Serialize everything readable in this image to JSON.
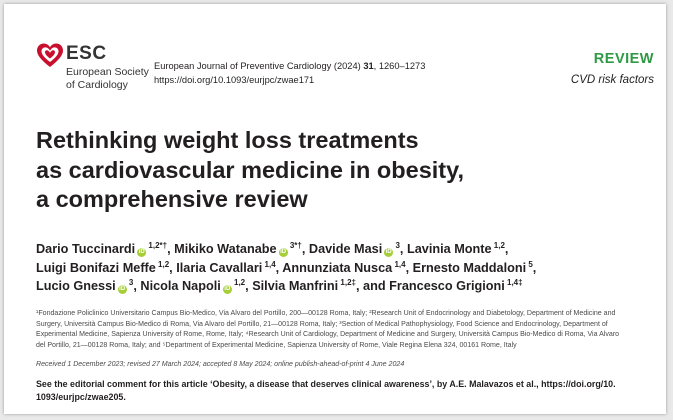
{
  "logo": {
    "brand": "ESC",
    "society_line1": "European Society",
    "society_line2": "of Cardiology",
    "heart_color": "#c8102e"
  },
  "journal": {
    "name": "European Journal of Preventive Cardiology (2024)",
    "volume": "31",
    "pages": ", 1260–1273",
    "doi": "https://doi.org/10.1093/eurjpc/zwae171"
  },
  "article_type": {
    "label": "REVIEW",
    "label_color": "#2f9a46",
    "section": "CVD risk factors"
  },
  "title": {
    "line1": "Rethinking weight loss treatments",
    "line2": "as cardiovascular medicine in obesity,",
    "line3": "a comprehensive review"
  },
  "authors": {
    "line1": [
      {
        "name": "Dario Tuccinardi",
        "sup": "1,2",
        "mark": "*†",
        "orcid": true,
        "sep": ", "
      },
      {
        "name": "Mikiko Watanabe",
        "sup": "3",
        "mark": "*†",
        "orcid": true,
        "sep": ", "
      },
      {
        "name": "Davide Masi",
        "sup": "3",
        "mark": "",
        "orcid": true,
        "sep": ", "
      },
      {
        "name": "Lavinia Monte",
        "sup": "1,2",
        "mark": "",
        "orcid": false,
        "sep": ","
      }
    ],
    "line2": [
      {
        "name": "Luigi Bonifazi Meffe",
        "sup": "1,2",
        "mark": "",
        "orcid": false,
        "sep": ", "
      },
      {
        "name": "Ilaria Cavallari",
        "sup": "1,4",
        "mark": "",
        "orcid": false,
        "sep": ", "
      },
      {
        "name": "Annunziata Nusca",
        "sup": "1,4",
        "mark": "",
        "orcid": false,
        "sep": ", "
      },
      {
        "name": "Ernesto Maddaloni",
        "sup": "5",
        "mark": "",
        "orcid": false,
        "sep": ","
      }
    ],
    "line3": [
      {
        "name": "Lucio Gnessi",
        "sup": "3",
        "mark": "",
        "orcid": true,
        "sep": ", "
      },
      {
        "name": "Nicola Napoli",
        "sup": "1,2",
        "mark": "",
        "orcid": true,
        "sep": ", "
      },
      {
        "name": "Silvia Manfrini",
        "sup": "1,2‡",
        "mark": "",
        "orcid": false,
        "sep": ", and "
      },
      {
        "name": "Francesco Grigioni",
        "sup": "1,4‡",
        "mark": "",
        "orcid": false,
        "sep": ""
      }
    ],
    "orcid_color": "#a6ce39"
  },
  "affiliations": {
    "lines": [
      "¹Fondazione Policlinico Universitario Campus Bio-Medico, Via Alvaro del Portillo, 200—00128 Roma, Italy; ²Research Unit of Endocrinology and Diabetology, Department of Medicine and",
      "Surgery, Università Campus Bio-Medico di Roma, Via Alvaro del Portillo, 21—00128 Roma, Italy; ³Section of Medical Pathophysiology, Food Science and Endocrinology, Department of",
      "Experimental Medicine, Sapienza University of Rome, Rome, Italy; ⁴Research Unit of Cardiology, Department of Medicine and Surgery, Università Campus Bio-Medico di Roma, Via Alvaro",
      "del Portillo, 21—00128 Roma, Italy; and ⁵Department of Experimental Medicine, Sapienza University of Rome, Viale Regina Elena 324, 00161 Rome, Italy"
    ]
  },
  "history": "Received 1 December 2023; revised 27 March 2024; accepted 8 May 2024; online publish-ahead-of-print 4 June 2024",
  "editorial": {
    "line1": "See the editorial comment for this article ‘Obesity, a disease that deserves clinical awareness’, by A.E. Malavazos et al., https://doi.org/10.",
    "line2": "1093/eurjpc/zwae205."
  }
}
